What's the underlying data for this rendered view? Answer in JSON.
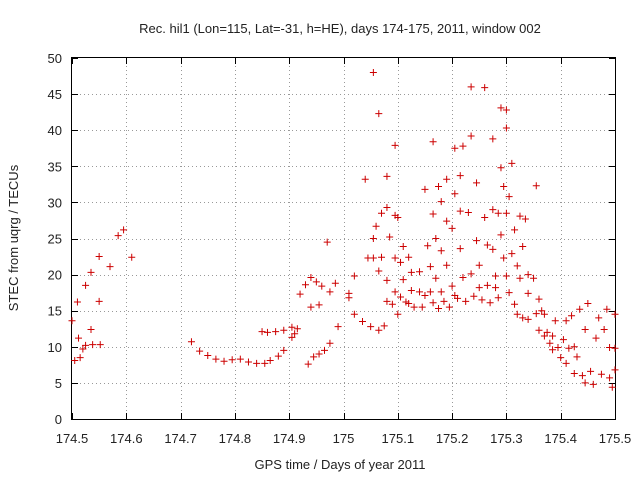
{
  "chart_data": {
    "type": "scatter",
    "title": "Rec. hil1 (Lon=115, Lat=-31, h=HE), days 174-175, 2011, window 002",
    "xlabel": "GPS time / Days of year 2011",
    "ylabel": "STEC from uqrg / TECUs",
    "xlim": [
      174.5,
      175.5
    ],
    "ylim": [
      0,
      50
    ],
    "x_ticks": [
      174.5,
      174.6,
      174.7,
      174.8,
      174.9,
      175,
      175.1,
      175.2,
      175.3,
      175.4,
      175.5
    ],
    "x_tick_labels": [
      "174.5",
      "174.6",
      "174.7",
      "174.8",
      "174.9",
      "175",
      "175.1",
      "175.2",
      "175.3",
      "175.4",
      "175.5"
    ],
    "y_ticks": [
      0,
      5,
      10,
      15,
      20,
      25,
      30,
      35,
      40,
      45,
      50
    ],
    "y_tick_labels": [
      "0",
      "5",
      "10",
      "15",
      "20",
      "25",
      "30",
      "35",
      "40",
      "45",
      "50"
    ],
    "grid": true,
    "marker": "plus",
    "marker_color": "#cc0000",
    "points": [
      [
        174.5,
        13.6
      ],
      [
        174.505,
        8.1
      ],
      [
        174.51,
        16.2
      ],
      [
        174.512,
        11.2
      ],
      [
        174.515,
        8.5
      ],
      [
        174.52,
        9.7
      ],
      [
        174.525,
        10.2
      ],
      [
        174.525,
        18.5
      ],
      [
        174.535,
        20.3
      ],
      [
        174.535,
        12.4
      ],
      [
        174.538,
        10.3
      ],
      [
        174.55,
        22.5
      ],
      [
        174.55,
        16.3
      ],
      [
        174.552,
        10.3
      ],
      [
        174.57,
        21.1
      ],
      [
        174.585,
        25.4
      ],
      [
        174.595,
        26.2
      ],
      [
        174.61,
        22.4
      ],
      [
        174.72,
        10.7
      ],
      [
        174.735,
        9.4
      ],
      [
        174.75,
        8.8
      ],
      [
        174.765,
        8.3
      ],
      [
        174.78,
        8.0
      ],
      [
        174.795,
        8.2
      ],
      [
        174.81,
        8.3
      ],
      [
        174.825,
        7.9
      ],
      [
        174.84,
        7.7
      ],
      [
        174.855,
        7.7
      ],
      [
        174.865,
        8.1
      ],
      [
        174.88,
        8.7
      ],
      [
        174.89,
        9.5
      ],
      [
        174.91,
        11.8
      ],
      [
        174.85,
        12.1
      ],
      [
        174.86,
        12.0
      ],
      [
        174.875,
        12.1
      ],
      [
        174.89,
        12.3
      ],
      [
        174.905,
        12.7
      ],
      [
        174.915,
        12.5
      ],
      [
        174.905,
        11.3
      ],
      [
        174.92,
        17.3
      ],
      [
        174.93,
        18.6
      ],
      [
        174.94,
        19.6
      ],
      [
        174.95,
        19.0
      ],
      [
        174.96,
        18.4
      ],
      [
        174.975,
        17.6
      ],
      [
        174.985,
        18.8
      ],
      [
        174.935,
        7.6
      ],
      [
        174.945,
        8.6
      ],
      [
        174.955,
        9.0
      ],
      [
        174.965,
        9.5
      ],
      [
        174.975,
        10.5
      ],
      [
        174.94,
        15.5
      ],
      [
        174.955,
        15.8
      ],
      [
        174.97,
        24.5
      ],
      [
        174.99,
        12.8
      ],
      [
        175.01,
        16.8
      ],
      [
        175.01,
        17.4
      ],
      [
        175.02,
        19.8
      ],
      [
        175.02,
        14.5
      ],
      [
        175.035,
        13.5
      ],
      [
        175.04,
        33.2
      ],
      [
        175.045,
        22.3
      ],
      [
        175.05,
        12.8
      ],
      [
        175.055,
        48.0
      ],
      [
        175.055,
        25.0
      ],
      [
        175.055,
        22.3
      ],
      [
        175.06,
        26.7
      ],
      [
        175.065,
        42.3
      ],
      [
        175.065,
        20.5
      ],
      [
        175.065,
        12.3
      ],
      [
        175.07,
        28.5
      ],
      [
        175.07,
        22.4
      ],
      [
        175.075,
        12.9
      ],
      [
        175.08,
        33.6
      ],
      [
        175.08,
        29.3
      ],
      [
        175.08,
        19.2
      ],
      [
        175.08,
        16.3
      ],
      [
        175.085,
        25.2
      ],
      [
        175.09,
        15.9
      ],
      [
        175.095,
        37.9
      ],
      [
        175.095,
        28.2
      ],
      [
        175.095,
        22.3
      ],
      [
        175.095,
        17.6
      ],
      [
        175.1,
        14.5
      ],
      [
        175.1,
        27.9
      ],
      [
        175.105,
        21.7
      ],
      [
        175.105,
        16.9
      ],
      [
        175.11,
        23.9
      ],
      [
        175.11,
        19.3
      ],
      [
        175.115,
        16.2
      ],
      [
        175.12,
        16.0
      ],
      [
        175.12,
        22.4
      ],
      [
        175.125,
        20.3
      ],
      [
        175.125,
        17.8
      ],
      [
        175.13,
        15.5
      ],
      [
        175.14,
        20.4
      ],
      [
        175.14,
        17.6
      ],
      [
        175.145,
        15.5
      ],
      [
        175.15,
        17.1
      ],
      [
        175.15,
        31.8
      ],
      [
        175.155,
        24.0
      ],
      [
        175.16,
        21.1
      ],
      [
        175.16,
        17.6
      ],
      [
        175.165,
        38.4
      ],
      [
        175.165,
        28.4
      ],
      [
        175.165,
        16.1
      ],
      [
        175.17,
        25.0
      ],
      [
        175.17,
        19.5
      ],
      [
        175.175,
        32.2
      ],
      [
        175.175,
        15.3
      ],
      [
        175.18,
        30.1
      ],
      [
        175.18,
        23.3
      ],
      [
        175.18,
        17.6
      ],
      [
        175.185,
        16.3
      ],
      [
        175.19,
        33.2
      ],
      [
        175.19,
        27.4
      ],
      [
        175.19,
        21.3
      ],
      [
        175.195,
        15.5
      ],
      [
        175.2,
        26.4
      ],
      [
        175.2,
        18.4
      ],
      [
        175.205,
        37.5
      ],
      [
        175.205,
        31.2
      ],
      [
        175.205,
        17.1
      ],
      [
        175.21,
        16.7
      ],
      [
        175.215,
        33.7
      ],
      [
        175.215,
        28.8
      ],
      [
        175.215,
        23.6
      ],
      [
        175.22,
        37.8
      ],
      [
        175.22,
        19.6
      ],
      [
        175.225,
        16.3
      ],
      [
        175.23,
        28.6
      ],
      [
        175.235,
        39.2
      ],
      [
        175.235,
        46.0
      ],
      [
        175.235,
        20.1
      ],
      [
        175.24,
        17.0
      ],
      [
        175.245,
        32.7
      ],
      [
        175.245,
        24.7
      ],
      [
        175.25,
        21.3
      ],
      [
        175.25,
        18.2
      ],
      [
        175.255,
        16.5
      ],
      [
        175.26,
        45.9
      ],
      [
        175.26,
        27.9
      ],
      [
        175.265,
        24.1
      ],
      [
        175.265,
        18.5
      ],
      [
        175.27,
        16.1
      ],
      [
        175.275,
        38.8
      ],
      [
        175.275,
        29.0
      ],
      [
        175.275,
        23.5
      ],
      [
        175.28,
        19.8
      ],
      [
        175.28,
        18.2
      ],
      [
        175.285,
        28.5
      ],
      [
        175.285,
        16.8
      ],
      [
        175.29,
        43.1
      ],
      [
        175.29,
        34.8
      ],
      [
        175.29,
        25.5
      ],
      [
        175.295,
        32.2
      ],
      [
        175.295,
        22.3
      ],
      [
        175.3,
        42.8
      ],
      [
        175.3,
        40.3
      ],
      [
        175.3,
        28.5
      ],
      [
        175.3,
        19.8
      ],
      [
        175.305,
        30.8
      ],
      [
        175.305,
        17.5
      ],
      [
        175.31,
        35.4
      ],
      [
        175.31,
        22.9
      ],
      [
        175.315,
        26.2
      ],
      [
        175.315,
        15.9
      ],
      [
        175.32,
        21.2
      ],
      [
        175.32,
        14.5
      ],
      [
        175.325,
        28.1
      ],
      [
        175.325,
        19.5
      ],
      [
        175.33,
        23.9
      ],
      [
        175.33,
        14.0
      ],
      [
        175.335,
        27.7
      ],
      [
        175.34,
        20.0
      ],
      [
        175.34,
        17.4
      ],
      [
        175.34,
        13.8
      ],
      [
        175.35,
        19.5
      ],
      [
        175.355,
        32.3
      ],
      [
        175.355,
        14.6
      ],
      [
        175.36,
        16.6
      ],
      [
        175.36,
        12.3
      ],
      [
        175.365,
        15.0
      ],
      [
        175.37,
        14.5
      ],
      [
        175.37,
        11.5
      ],
      [
        175.375,
        12.0
      ],
      [
        175.38,
        10.5
      ],
      [
        175.385,
        11.5
      ],
      [
        175.385,
        9.6
      ],
      [
        175.39,
        13.6
      ],
      [
        175.395,
        9.9
      ],
      [
        175.4,
        8.5
      ],
      [
        175.405,
        11.0
      ],
      [
        175.41,
        13.6
      ],
      [
        175.41,
        7.7
      ],
      [
        175.415,
        9.8
      ],
      [
        175.42,
        14.3
      ],
      [
        175.425,
        10.0
      ],
      [
        175.425,
        6.3
      ],
      [
        175.43,
        8.6
      ],
      [
        175.435,
        15.2
      ],
      [
        175.44,
        6.0
      ],
      [
        175.445,
        12.4
      ],
      [
        175.445,
        5.0
      ],
      [
        175.45,
        16.0
      ],
      [
        175.455,
        6.6
      ],
      [
        175.46,
        4.8
      ],
      [
        175.465,
        11.2
      ],
      [
        175.47,
        14.0
      ],
      [
        175.475,
        6.2
      ],
      [
        175.48,
        12.4
      ],
      [
        175.485,
        15.2
      ],
      [
        175.49,
        5.7
      ],
      [
        175.49,
        9.9
      ],
      [
        175.495,
        4.4
      ],
      [
        175.5,
        14.5
      ],
      [
        175.5,
        9.8
      ],
      [
        175.5,
        6.8
      ]
    ]
  }
}
